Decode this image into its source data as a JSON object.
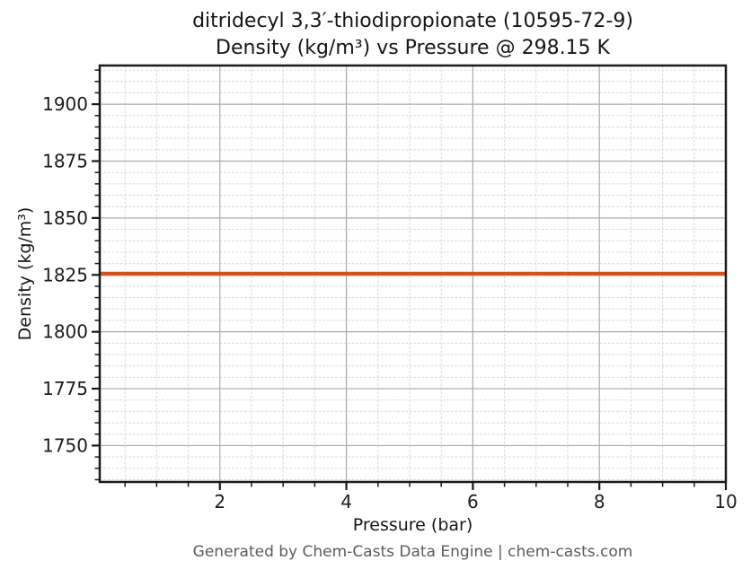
{
  "figure": {
    "title_line1": "ditridecyl 3,3′-thiodipropionate (10595-72-9)",
    "title_line2": "Density (kg/m³) vs Pressure @ 298.15 K",
    "footer": "Generated by Chem-Casts Data Engine | chem-casts.com"
  },
  "chart_data": {
    "type": "line",
    "title": "ditridecyl 3,3′-thiodipropionate (10595-72-9) Density (kg/m³) vs Pressure @ 298.15 K",
    "xlabel": "Pressure (bar)",
    "ylabel": "Density (kg/m³)",
    "xlim": [
      0.1,
      10
    ],
    "ylim": [
      1734,
      1917
    ],
    "x_major_ticks": [
      2,
      4,
      6,
      8,
      10
    ],
    "x_minor_tick_step": 0.5,
    "y_major_ticks": [
      1750,
      1775,
      1800,
      1825,
      1850,
      1875,
      1900
    ],
    "y_minor_tick_step": 5,
    "grid": {
      "major": "solid",
      "minor": "dashed",
      "visible": true
    },
    "legend_position": "none",
    "series": [
      {
        "name": "Density @ 298.15 K",
        "color": "#d0521e",
        "x": [
          0.1,
          10
        ],
        "y": [
          1825.5,
          1825.5
        ]
      }
    ],
    "style_colors": {
      "line": "#d0521e",
      "major_grid": "#ababab",
      "minor_grid": "#d9d9d9",
      "spine": "#1a1a1a",
      "tick_label": "#1c1c1c",
      "footer_text": "#5c5c5c"
    }
  }
}
